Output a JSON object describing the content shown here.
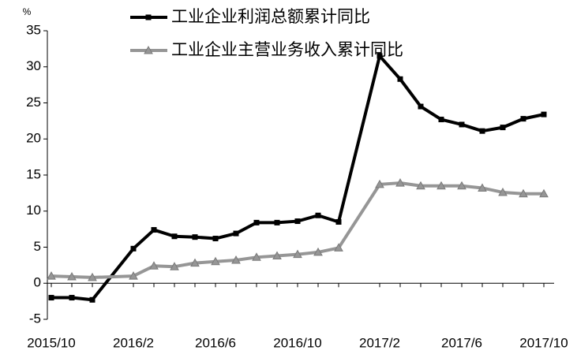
{
  "chart_data": {
    "type": "line",
    "y_unit": "%",
    "x": [
      "2015/10",
      "2015/11",
      "2015/12",
      "2016/2",
      "2016/3",
      "2016/4",
      "2016/5",
      "2016/6",
      "2016/7",
      "2016/8",
      "2016/9",
      "2016/10",
      "2016/11",
      "2016/12",
      "2017/2",
      "2017/3",
      "2017/4",
      "2017/5",
      "2017/6",
      "2017/7",
      "2017/8",
      "2017/9",
      "2017/10"
    ],
    "xticks": [
      "2015/10",
      "2016/2",
      "2016/6",
      "2016/10",
      "2017/2",
      "2017/6",
      "2017/10"
    ],
    "series": [
      {
        "name": "工业企业利润总额累计同比",
        "color": "#000000",
        "marker": "square",
        "values": [
          -2.0,
          -2.0,
          -2.3,
          4.8,
          7.4,
          6.5,
          6.4,
          6.2,
          6.9,
          8.4,
          8.4,
          8.6,
          9.4,
          8.5,
          31.5,
          28.3,
          24.5,
          22.7,
          22.0,
          21.1,
          21.6,
          22.8,
          23.4
        ]
      },
      {
        "name": "工业企业主营业务收入累计同比",
        "color": "#969696",
        "marker": "triangle",
        "values": [
          1.0,
          0.9,
          0.8,
          1.0,
          2.4,
          2.3,
          2.8,
          3.0,
          3.2,
          3.6,
          3.8,
          4.0,
          4.3,
          4.9,
          13.7,
          13.9,
          13.5,
          13.5,
          13.5,
          13.2,
          12.6,
          12.4,
          12.4
        ]
      }
    ],
    "ylim": [
      -5,
      35
    ],
    "yticks": [
      -5,
      0,
      5,
      10,
      15,
      20,
      25,
      30,
      35
    ],
    "grid": false
  }
}
